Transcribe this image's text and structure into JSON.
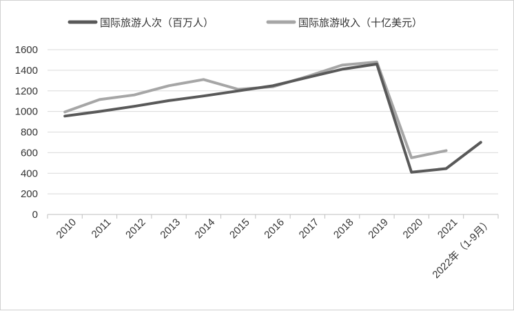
{
  "chart_data": {
    "type": "line",
    "categories": [
      "2010",
      "2011",
      "2012",
      "2013",
      "2014",
      "2015",
      "2016",
      "2017",
      "2018",
      "2019",
      "2020",
      "2021",
      "2022年（1-9月）"
    ],
    "series": [
      {
        "name": "国际旅游人次（百万人）",
        "color": "#595959",
        "values": [
          955,
          1000,
          1050,
          1105,
          1150,
          1200,
          1250,
          1330,
          1410,
          1460,
          410,
          445,
          700
        ]
      },
      {
        "name": "国际旅游收入（十亿美元）",
        "color": "#a6a6a6",
        "values": [
          995,
          1115,
          1160,
          1250,
          1310,
          1215,
          1240,
          1340,
          1450,
          1480,
          550,
          620,
          null
        ]
      }
    ],
    "yticks": [
      "0",
      "200",
      "400",
      "600",
      "800",
      "1000",
      "1200",
      "1400",
      "1600"
    ],
    "ylim": [
      0,
      1600
    ],
    "grid": true,
    "legend": "top"
  }
}
